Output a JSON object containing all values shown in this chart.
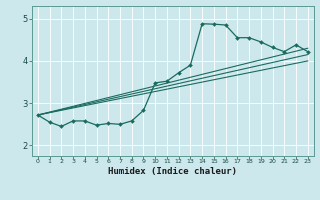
{
  "title": "",
  "xlabel": "Humidex (Indice chaleur)",
  "ylabel": "",
  "background_color": "#cde8ec",
  "grid_color": "#b0d4d8",
  "line_color": "#1a6b60",
  "xlim": [
    -0.5,
    23.5
  ],
  "ylim": [
    1.75,
    5.3
  ],
  "xticks": [
    0,
    1,
    2,
    3,
    4,
    5,
    6,
    7,
    8,
    9,
    10,
    11,
    12,
    13,
    14,
    15,
    16,
    17,
    18,
    19,
    20,
    21,
    22,
    23
  ],
  "yticks": [
    2,
    3,
    4,
    5
  ],
  "main_curve_x": [
    0,
    1,
    2,
    3,
    4,
    5,
    6,
    7,
    8,
    9,
    10,
    11,
    12,
    13,
    14,
    15,
    16,
    17,
    18,
    19,
    20,
    21,
    22,
    23
  ],
  "main_curve_y": [
    2.72,
    2.55,
    2.45,
    2.58,
    2.58,
    2.48,
    2.52,
    2.5,
    2.58,
    2.83,
    3.48,
    3.52,
    3.72,
    3.9,
    4.88,
    4.87,
    4.85,
    4.55,
    4.55,
    4.45,
    4.32,
    4.22,
    4.38,
    4.22
  ],
  "line1_x": [
    0,
    23
  ],
  "line1_y": [
    2.72,
    4.3
  ],
  "line2_x": [
    0,
    23
  ],
  "line2_y": [
    2.72,
    4.15
  ],
  "line3_x": [
    0,
    23
  ],
  "line3_y": [
    2.72,
    4.0
  ]
}
